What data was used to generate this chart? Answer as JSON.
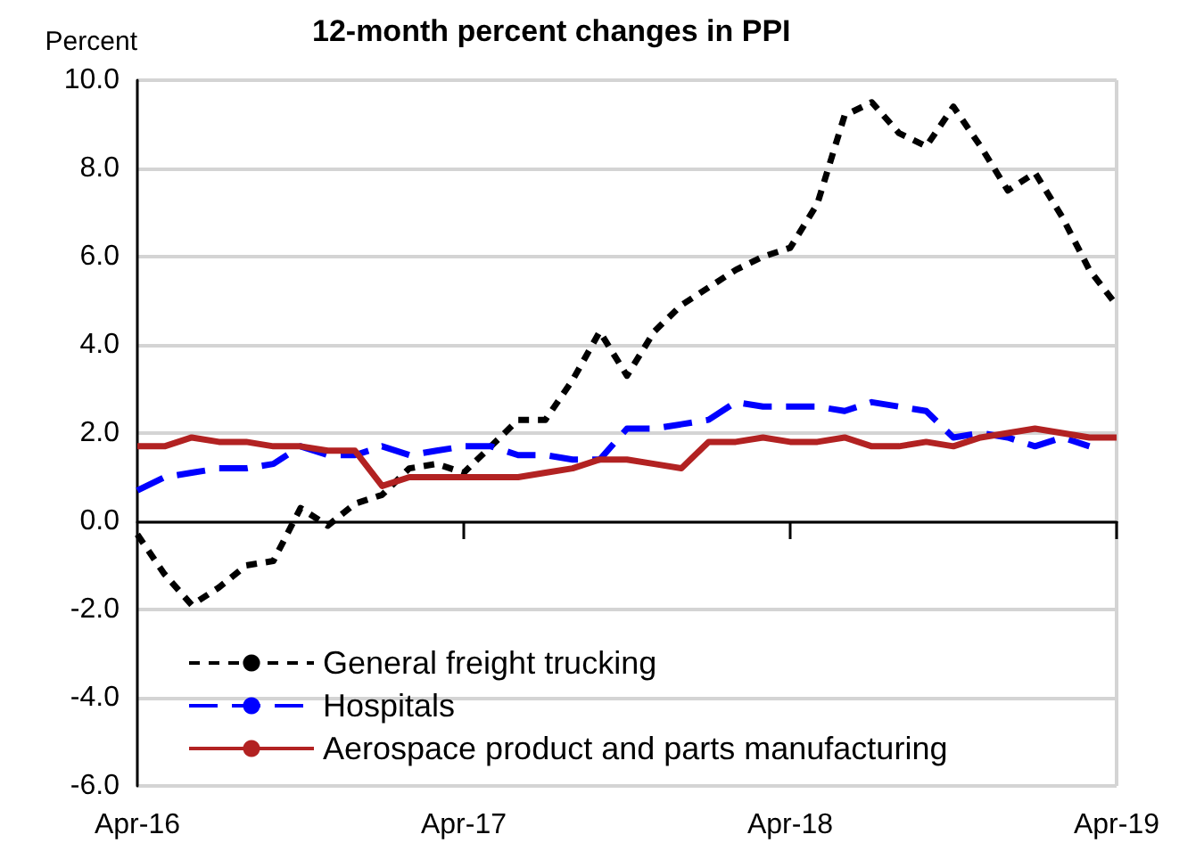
{
  "chart_data": {
    "type": "line",
    "title": "12-month percent changes in PPI",
    "ylabel": "Percent",
    "categories": [
      "Apr-16",
      null,
      null,
      null,
      null,
      null,
      null,
      null,
      null,
      null,
      null,
      null,
      "Apr-17",
      null,
      null,
      null,
      null,
      null,
      null,
      null,
      null,
      null,
      null,
      null,
      "Apr-18",
      null,
      null,
      null,
      null,
      null,
      null,
      null,
      null,
      null,
      null,
      null,
      "Apr-19"
    ],
    "series": [
      {
        "name": "General freight trucking",
        "color": "#000000",
        "line_style": "dotted",
        "values": [
          -0.3,
          -1.2,
          -1.9,
          -1.5,
          -1.0,
          -0.9,
          0.3,
          -0.1,
          0.4,
          0.6,
          1.2,
          1.3,
          1.1,
          1.7,
          2.3,
          2.3,
          3.2,
          4.3,
          3.3,
          4.3,
          4.9,
          5.3,
          5.7,
          6.0,
          6.2,
          7.2,
          9.2,
          9.5,
          8.8,
          8.5,
          9.4,
          8.5,
          7.5,
          7.9,
          6.9,
          5.7,
          4.9
        ]
      },
      {
        "name": "Hospitals",
        "color": "#0000ff",
        "line_style": "dashed",
        "values": [
          0.7,
          1.0,
          1.1,
          1.2,
          1.2,
          1.3,
          1.7,
          1.5,
          1.5,
          1.7,
          1.5,
          1.6,
          1.7,
          1.7,
          1.5,
          1.5,
          1.4,
          1.4,
          2.1,
          2.1,
          2.2,
          2.3,
          2.7,
          2.6,
          2.6,
          2.6,
          2.5,
          2.7,
          2.6,
          2.5,
          1.9,
          2.0,
          1.9,
          1.7,
          1.9,
          1.7,
          null
        ]
      },
      {
        "name": "Aerospace product and parts manufacturing",
        "color": "#b22222",
        "line_style": "solid",
        "values": [
          1.7,
          1.7,
          1.9,
          1.8,
          1.8,
          1.7,
          1.7,
          1.6,
          1.6,
          0.8,
          1.0,
          1.0,
          1.0,
          1.0,
          1.0,
          1.1,
          1.2,
          1.4,
          1.4,
          1.3,
          1.2,
          1.8,
          1.8,
          1.9,
          1.8,
          1.8,
          1.9,
          1.7,
          1.7,
          1.8,
          1.7,
          1.9,
          2.0,
          2.1,
          2.0,
          1.9,
          1.9
        ]
      }
    ],
    "ylim": [
      -6,
      10
    ],
    "yticks": [
      {
        "value": -6,
        "label": "-6.0"
      },
      {
        "value": -4,
        "label": "-4.0"
      },
      {
        "value": -2,
        "label": "-2.0"
      },
      {
        "value": 0,
        "label": "0.0"
      },
      {
        "value": 2,
        "label": "2.0"
      },
      {
        "value": 4,
        "label": "4.0"
      },
      {
        "value": 6,
        "label": "6.0"
      },
      {
        "value": 8,
        "label": "8.0"
      },
      {
        "value": 10,
        "label": "10.0"
      }
    ],
    "grid": "y",
    "legend": "bottom left",
    "marker": "none"
  }
}
